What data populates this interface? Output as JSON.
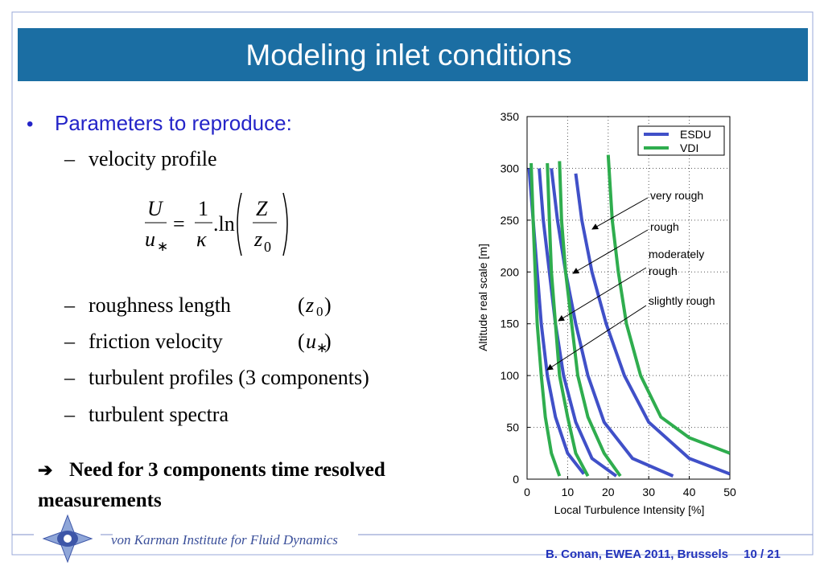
{
  "header": {
    "title": "Modeling inlet conditions"
  },
  "body": {
    "bullet_mark": "•",
    "bullet": "Parameters to reproduce:",
    "dash": "–",
    "paren_open": "(",
    "paren_close": ")",
    "subitems": [
      {
        "label": "velocity profile"
      },
      {
        "label": "roughness length",
        "symbol": "z",
        "sub": "0"
      },
      {
        "label": "friction velocity",
        "symbol": "u",
        "sub": "∗"
      },
      {
        "label": "turbulent profiles (3 components)"
      },
      {
        "label": "turbulent spectra"
      }
    ],
    "equation": {
      "lhs_num": "U",
      "lhs_den": "u",
      "lhs_den_sub": "∗",
      "eq": "=",
      "frac_num": "1",
      "frac_den": "κ",
      "ln": ".ln",
      "rhs_num": "Z",
      "rhs_den": "z",
      "rhs_den_sub": "0"
    },
    "conclusion": {
      "arrow": "➔",
      "lines": [
        "Need for 3 components time resolved",
        "measurements"
      ]
    }
  },
  "footer": {
    "institute": "von Karman Institute for Fluid Dynamics",
    "citation": "B. Conan, EWEA 2011, Brussels",
    "page": "10 / 21"
  },
  "chart_data": {
    "type": "line",
    "xlabel": "Local Turbulence Intensity [%]",
    "ylabel": "Altitude real scale [m]",
    "xlim": [
      0,
      50
    ],
    "ylim": [
      0,
      350
    ],
    "xticks": [
      0,
      10,
      20,
      30,
      40,
      50
    ],
    "yticks": [
      0,
      50,
      100,
      150,
      200,
      250,
      300,
      350
    ],
    "grid": true,
    "legend": "upper right",
    "series": [
      {
        "name": "ESDU",
        "color": "#4050c8",
        "curves": [
          {
            "x": [
              0.5,
              1.5,
              2.5,
              3.5,
              5,
              7,
              10,
              14
            ],
            "y": [
              300,
              250,
              200,
              150,
              100,
              60,
              25,
              5
            ]
          },
          {
            "x": [
              3,
              4,
              5.5,
              7,
              9,
              12,
              16,
              22
            ],
            "y": [
              300,
              250,
              200,
              150,
              100,
              55,
              20,
              3
            ]
          },
          {
            "x": [
              6,
              7.5,
              9.5,
              12,
              15,
              19,
              26,
              36
            ],
            "y": [
              300,
              250,
              200,
              150,
              100,
              55,
              20,
              3
            ]
          },
          {
            "x": [
              12,
              13.5,
              16,
              19.5,
              24,
              30,
              40,
              50
            ],
            "y": [
              295,
              250,
              200,
              150,
              100,
              55,
              20,
              5
            ]
          }
        ]
      },
      {
        "name": "VDI",
        "color": "#2fad4e",
        "curves": [
          {
            "x": [
              1,
              1.5,
              2,
              2.5,
              3.5,
              4.5,
              6,
              8
            ],
            "y": [
              305,
              250,
              200,
              150,
              100,
              60,
              25,
              3
            ]
          },
          {
            "x": [
              5,
              5.5,
              6,
              7,
              8,
              10,
              12,
              15
            ],
            "y": [
              305,
              250,
              200,
              150,
              100,
              60,
              25,
              3
            ]
          },
          {
            "x": [
              8,
              8.5,
              9.5,
              11,
              12.5,
              15,
              19,
              23
            ],
            "y": [
              307,
              250,
              200,
              150,
              100,
              60,
              25,
              3
            ]
          },
          {
            "x": [
              20,
              21,
              22.5,
              24.5,
              28,
              33,
              40,
              50
            ],
            "y": [
              313,
              250,
              200,
              150,
              100,
              60,
              40,
              25
            ]
          }
        ]
      }
    ],
    "annotations": [
      [
        "very rough"
      ],
      [
        "rough"
      ],
      [
        "moderately",
        "rough"
      ],
      [
        "slightly rough"
      ]
    ]
  }
}
